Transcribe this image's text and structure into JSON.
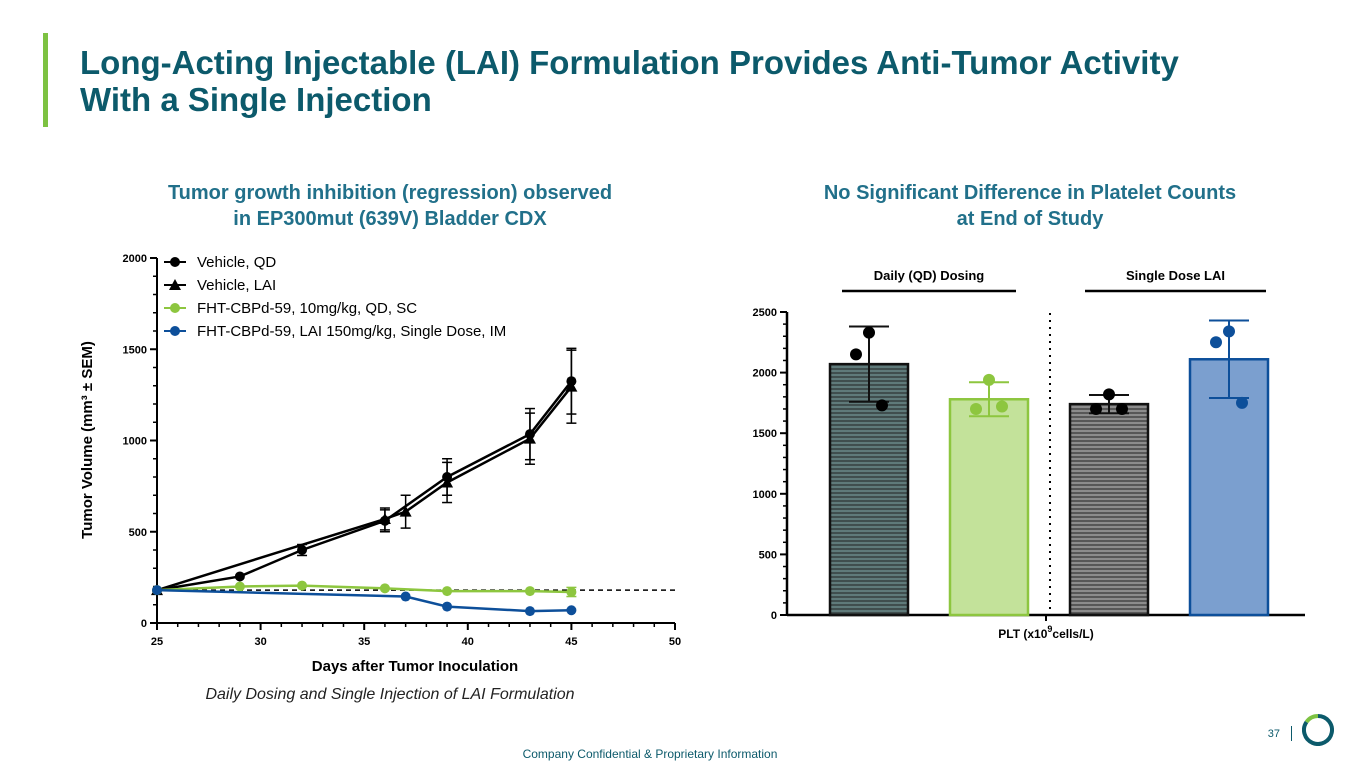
{
  "slide": {
    "title_line1": "Long-Acting Injectable (LAI) Formulation Provides Anti-Tumor Activity",
    "title_line2": "With a Single Injection",
    "left_subtitle_line1": "Tumor growth inhibition (regression) observed",
    "left_subtitle_line2": "in EP300mut (639V) Bladder CDX",
    "right_subtitle_line1": "No Significant Difference in Platelet Counts",
    "right_subtitle_line2": "at End of Study",
    "caption": "Daily Dosing and Single Injection of LAI Formulation",
    "footer": "Company Confidential & Proprietary Information",
    "page_number": "37",
    "colors": {
      "title": "#0c5a6b",
      "subtitle": "#21708a",
      "accent": "#7dc242",
      "black_series": "#000000",
      "green_series": "#8dc63f",
      "blue_series": "#0d4f9a"
    },
    "icons": {
      "logo": "circular-ring-logo-icon"
    }
  },
  "chart_data": [
    {
      "type": "line",
      "xlabel": "Days after Tumor Inoculation",
      "ylabel": "Tumor Volume (mm³ ± SEM)",
      "xlim": [
        25,
        50
      ],
      "ylim": [
        0,
        2000
      ],
      "xticks": [
        "25",
        "30",
        "35",
        "40",
        "45",
        "50"
      ],
      "yticks": [
        "0",
        "500",
        "1000",
        "1500",
        "2000"
      ],
      "legend_position": "top-left",
      "reference_line": {
        "y": 180,
        "style": "dashed"
      },
      "series": [
        {
          "name": "Vehicle, QD",
          "marker": "circle",
          "color": "#000000",
          "x": [
            25,
            29,
            32,
            36,
            39,
            43,
            45
          ],
          "y": [
            180,
            255,
            400,
            560,
            800,
            1035,
            1325
          ],
          "err": [
            0,
            0,
            30,
            60,
            100,
            140,
            180
          ]
        },
        {
          "name": "Vehicle, LAI",
          "marker": "triangle",
          "color": "#000000",
          "x": [
            25,
            36,
            37,
            39,
            43,
            45
          ],
          "y": [
            180,
            570,
            610,
            770,
            1010,
            1295
          ],
          "err": [
            0,
            60,
            90,
            110,
            140,
            200
          ]
        },
        {
          "name": "FHT-CBPd-59, 10mg/kg, QD, SC",
          "marker": "circle",
          "color": "#8dc63f",
          "x": [
            25,
            29,
            32,
            36,
            39,
            43,
            45
          ],
          "y": [
            180,
            200,
            205,
            190,
            175,
            175,
            170
          ],
          "err": [
            0,
            0,
            0,
            0,
            0,
            0,
            25
          ]
        },
        {
          "name": "FHT-CBPd-59, LAI 150mg/kg, Single Dose, IM",
          "marker": "circle",
          "color": "#0d4f9a",
          "x": [
            25,
            37,
            39,
            43,
            45
          ],
          "y": [
            180,
            145,
            90,
            65,
            70
          ],
          "err": [
            0,
            0,
            0,
            0,
            0
          ]
        }
      ]
    },
    {
      "type": "bar",
      "xlabel_prefix": "PLT (x10",
      "xlabel_sup": "9",
      "xlabel_suffix": "cells/L)",
      "ylim": [
        0,
        2500
      ],
      "yticks": [
        "0",
        "500",
        "1000",
        "1500",
        "2000",
        "2500"
      ],
      "groups": [
        {
          "label": "Daily (QD) Dosing",
          "bars": [
            0,
            1
          ]
        },
        {
          "label": "Single Dose LAI",
          "bars": [
            2,
            3
          ]
        }
      ],
      "bars": [
        {
          "value": 2070,
          "sd": 310,
          "points": [
            2330,
            2150,
            1730
          ],
          "fill": "#5f7a7a",
          "stroke": "#111111",
          "dot": "#000000",
          "hatch": true
        },
        {
          "value": 1780,
          "sd": 140,
          "points": [
            1940,
            1700,
            1720
          ],
          "fill": "#c3e29a",
          "stroke": "#8dc63f",
          "dot": "#8dc63f",
          "hatch": false
        },
        {
          "value": 1740,
          "sd": 75,
          "points": [
            1820,
            1700,
            1700
          ],
          "fill": "#8c8c8c",
          "stroke": "#111111",
          "dot": "#000000",
          "hatch": true
        },
        {
          "value": 2110,
          "sd": 320,
          "points": [
            2340,
            2250,
            1750
          ],
          "fill": "#7b9fcf",
          "stroke": "#0d4f9a",
          "dot": "#0d4f9a",
          "hatch": false
        }
      ]
    }
  ]
}
